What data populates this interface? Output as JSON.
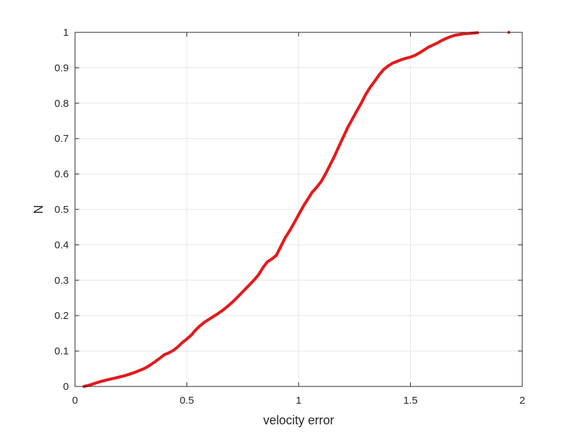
{
  "chart_data": {
    "type": "scatter",
    "title": "",
    "xlabel": "velocity error",
    "ylabel": "N",
    "xlim": [
      0,
      2
    ],
    "ylim": [
      0,
      1
    ],
    "xticks": [
      0,
      0.5,
      1,
      1.5,
      2
    ],
    "yticks": [
      0,
      0.1,
      0.2,
      0.3,
      0.4,
      0.5,
      0.6,
      0.7,
      0.8,
      0.9,
      1
    ],
    "xtick_labels": [
      "0",
      "0.5",
      "1",
      "1.5",
      "2"
    ],
    "ytick_labels": [
      "0",
      "0.1",
      "0.2",
      "0.3",
      "0.4",
      "0.5",
      "0.6",
      "0.7",
      "0.8",
      "0.9",
      "1"
    ],
    "grid": true,
    "marker_color": "#e41a1c",
    "series": [
      {
        "name": "",
        "points": [
          [
            0.04,
            0.0
          ],
          [
            0.06,
            0.003
          ],
          [
            0.08,
            0.007
          ],
          [
            0.1,
            0.011
          ],
          [
            0.12,
            0.015
          ],
          [
            0.14,
            0.018
          ],
          [
            0.16,
            0.021
          ],
          [
            0.18,
            0.024
          ],
          [
            0.2,
            0.027
          ],
          [
            0.22,
            0.03
          ],
          [
            0.24,
            0.034
          ],
          [
            0.26,
            0.038
          ],
          [
            0.28,
            0.043
          ],
          [
            0.3,
            0.048
          ],
          [
            0.32,
            0.054
          ],
          [
            0.34,
            0.062
          ],
          [
            0.36,
            0.071
          ],
          [
            0.38,
            0.08
          ],
          [
            0.4,
            0.09
          ],
          [
            0.42,
            0.095
          ],
          [
            0.44,
            0.102
          ],
          [
            0.46,
            0.112
          ],
          [
            0.48,
            0.124
          ],
          [
            0.5,
            0.134
          ],
          [
            0.52,
            0.145
          ],
          [
            0.54,
            0.16
          ],
          [
            0.56,
            0.172
          ],
          [
            0.58,
            0.182
          ],
          [
            0.6,
            0.19
          ],
          [
            0.62,
            0.198
          ],
          [
            0.64,
            0.206
          ],
          [
            0.66,
            0.215
          ],
          [
            0.68,
            0.225
          ],
          [
            0.7,
            0.236
          ],
          [
            0.72,
            0.248
          ],
          [
            0.74,
            0.261
          ],
          [
            0.76,
            0.274
          ],
          [
            0.78,
            0.287
          ],
          [
            0.8,
            0.3
          ],
          [
            0.82,
            0.315
          ],
          [
            0.84,
            0.335
          ],
          [
            0.86,
            0.352
          ],
          [
            0.88,
            0.36
          ],
          [
            0.9,
            0.37
          ],
          [
            0.92,
            0.395
          ],
          [
            0.94,
            0.42
          ],
          [
            0.96,
            0.44
          ],
          [
            0.98,
            0.462
          ],
          [
            1.0,
            0.485
          ],
          [
            1.02,
            0.508
          ],
          [
            1.04,
            0.528
          ],
          [
            1.06,
            0.548
          ],
          [
            1.08,
            0.562
          ],
          [
            1.1,
            0.578
          ],
          [
            1.12,
            0.6
          ],
          [
            1.14,
            0.625
          ],
          [
            1.16,
            0.65
          ],
          [
            1.18,
            0.678
          ],
          [
            1.2,
            0.705
          ],
          [
            1.22,
            0.732
          ],
          [
            1.24,
            0.755
          ],
          [
            1.26,
            0.778
          ],
          [
            1.28,
            0.8
          ],
          [
            1.3,
            0.825
          ],
          [
            1.32,
            0.845
          ],
          [
            1.34,
            0.862
          ],
          [
            1.36,
            0.88
          ],
          [
            1.38,
            0.895
          ],
          [
            1.4,
            0.905
          ],
          [
            1.42,
            0.913
          ],
          [
            1.44,
            0.918
          ],
          [
            1.46,
            0.923
          ],
          [
            1.48,
            0.927
          ],
          [
            1.5,
            0.93
          ],
          [
            1.52,
            0.935
          ],
          [
            1.54,
            0.942
          ],
          [
            1.56,
            0.95
          ],
          [
            1.58,
            0.958
          ],
          [
            1.6,
            0.964
          ],
          [
            1.62,
            0.97
          ],
          [
            1.64,
            0.977
          ],
          [
            1.66,
            0.983
          ],
          [
            1.68,
            0.988
          ],
          [
            1.7,
            0.992
          ],
          [
            1.72,
            0.994
          ],
          [
            1.74,
            0.996
          ],
          [
            1.76,
            0.997
          ],
          [
            1.78,
            0.998
          ],
          [
            1.8,
            0.999
          ],
          [
            1.94,
            1.0
          ]
        ]
      }
    ]
  }
}
